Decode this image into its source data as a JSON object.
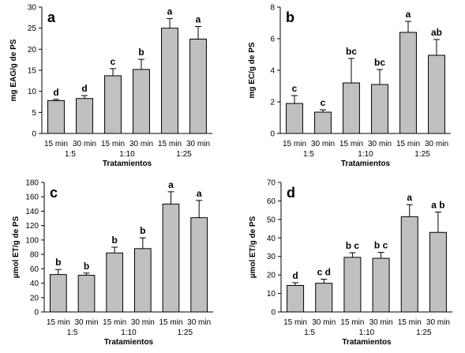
{
  "chart_data": [
    {
      "type": "bar",
      "panel_label": "a",
      "ylabel": "mg EAG/g de PS",
      "xlabel": "Tratamientos",
      "categories": [
        "15 min",
        "30 min",
        "15 min",
        "30 min",
        "15 min",
        "30 min"
      ],
      "groups": [
        "1:5",
        "1:10",
        "1:25"
      ],
      "values": [
        7.8,
        8.3,
        13.7,
        15.2,
        25.0,
        22.4
      ],
      "errors": [
        0.3,
        0.7,
        1.7,
        2.4,
        2.3,
        3.0
      ],
      "letters": [
        "d",
        "d",
        "c",
        "b",
        "a",
        "a"
      ],
      "ylim": [
        0,
        30
      ],
      "yticks": [
        0,
        5,
        10,
        15,
        20,
        25,
        30
      ]
    },
    {
      "type": "bar",
      "panel_label": "b",
      "ylabel": "mg EC/g de PS",
      "xlabel": "Tratamientos",
      "categories": [
        "15 min",
        "30 min",
        "15 min",
        "30 min",
        "15 min",
        "30 min"
      ],
      "groups": [
        "1:5",
        "1:10",
        "1:25"
      ],
      "values": [
        1.9,
        1.35,
        3.2,
        3.1,
        6.4,
        4.95
      ],
      "errors": [
        0.5,
        0.15,
        1.55,
        0.95,
        0.7,
        1.0
      ],
      "letters": [
        "c",
        "c",
        "bc",
        "bc",
        "a",
        "ab"
      ],
      "ylim": [
        0,
        8
      ],
      "yticks": [
        0,
        2,
        4,
        6,
        8
      ]
    },
    {
      "type": "bar",
      "panel_label": "c",
      "ylabel": "µmol ET/g de PS",
      "xlabel": "Tratamientos",
      "categories": [
        "15 min",
        "30 min",
        "15 min",
        "30 min",
        "15 min",
        "30 min"
      ],
      "groups": [
        "1:5",
        "1:10",
        "1:25"
      ],
      "values": [
        52,
        51,
        82,
        88,
        150,
        131
      ],
      "errors": [
        7,
        3,
        8,
        15,
        17,
        24
      ],
      "letters": [
        "b",
        "b",
        "b",
        "b",
        "a",
        "a"
      ],
      "ylim": [
        0,
        180
      ],
      "yticks": [
        0,
        20,
        40,
        60,
        80,
        100,
        120,
        140,
        160,
        180
      ]
    },
    {
      "type": "bar",
      "panel_label": "d",
      "ylabel": "µmol ET/g de PS",
      "xlabel": "Tratamientos",
      "categories": [
        "15 min",
        "30 min",
        "15 min",
        "30 min",
        "15 min",
        "30 min"
      ],
      "groups": [
        "1:5",
        "1:10",
        "1:25"
      ],
      "values": [
        14.3,
        15.5,
        29.5,
        29.0,
        51.5,
        43.0
      ],
      "errors": [
        1.5,
        2.2,
        2.5,
        3.2,
        6.5,
        11.0
      ],
      "letters": [
        "d",
        "c d",
        "b c",
        "b c",
        "a",
        "a b"
      ],
      "ylim": [
        0,
        70
      ],
      "yticks": [
        0,
        10,
        20,
        30,
        40,
        50,
        60,
        70
      ]
    }
  ],
  "colors": {
    "bar": "#c0c0c0",
    "stroke": "#000000"
  }
}
